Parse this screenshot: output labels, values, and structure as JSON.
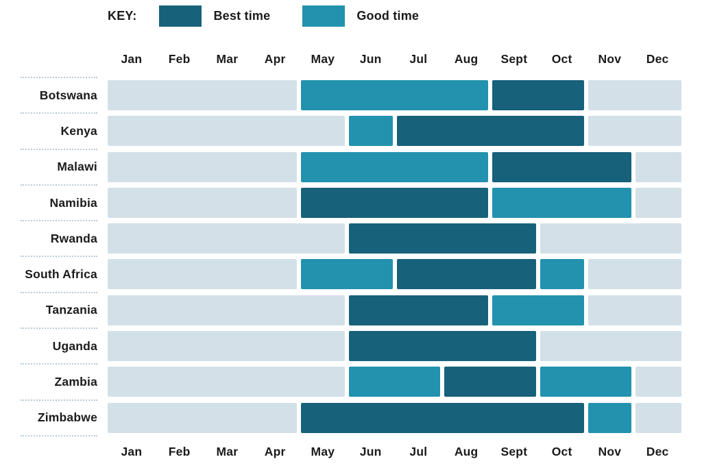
{
  "legend": {
    "title": "KEY:",
    "position": "top",
    "items": [
      {
        "label": "Best time",
        "type": "best"
      },
      {
        "label": "Good time",
        "type": "good"
      }
    ]
  },
  "colors": {
    "best": "#17617a",
    "good": "#2292ae",
    "none": "#d3e0e8",
    "dotted_divider": "#b8cbd7",
    "text": "#1b1b1b"
  },
  "chart_data": {
    "type": "heatmap",
    "title": "",
    "xlabel": "Months (shown on top and bottom axes)",
    "ylabel": "Country",
    "grid": "off",
    "legend_entries": [
      "Best time",
      "Good time"
    ],
    "months": [
      "Jan",
      "Feb",
      "Mar",
      "Apr",
      "May",
      "Jun",
      "Jul",
      "Aug",
      "Sept",
      "Oct",
      "Nov",
      "Dec"
    ],
    "rows": [
      {
        "country": "Botswana",
        "segments": [
          {
            "from": "Jan",
            "to": "Apr",
            "status": "none"
          },
          {
            "from": "May",
            "to": "Aug",
            "status": "good"
          },
          {
            "from": "Sept",
            "to": "Oct",
            "status": "best"
          },
          {
            "from": "Nov",
            "to": "Dec",
            "status": "none"
          }
        ]
      },
      {
        "country": "Kenya",
        "segments": [
          {
            "from": "Jan",
            "to": "May",
            "status": "none"
          },
          {
            "from": "Jun",
            "to": "Jun",
            "status": "good"
          },
          {
            "from": "Jul",
            "to": "Oct",
            "status": "best"
          },
          {
            "from": "Nov",
            "to": "Dec",
            "status": "none"
          }
        ]
      },
      {
        "country": "Malawi",
        "segments": [
          {
            "from": "Jan",
            "to": "Apr",
            "status": "none"
          },
          {
            "from": "May",
            "to": "Aug",
            "status": "good"
          },
          {
            "from": "Sept",
            "to": "Nov",
            "status": "best"
          },
          {
            "from": "Dec",
            "to": "Dec",
            "status": "none"
          }
        ]
      },
      {
        "country": "Namibia",
        "segments": [
          {
            "from": "Jan",
            "to": "Apr",
            "status": "none"
          },
          {
            "from": "May",
            "to": "Aug",
            "status": "best"
          },
          {
            "from": "Sept",
            "to": "Nov",
            "status": "good"
          },
          {
            "from": "Dec",
            "to": "Dec",
            "status": "none"
          }
        ]
      },
      {
        "country": "Rwanda",
        "segments": [
          {
            "from": "Jan",
            "to": "May",
            "status": "none"
          },
          {
            "from": "Jun",
            "to": "Sept",
            "status": "best"
          },
          {
            "from": "Oct",
            "to": "Dec",
            "status": "none"
          }
        ]
      },
      {
        "country": "South Africa",
        "segments": [
          {
            "from": "Jan",
            "to": "Apr",
            "status": "none"
          },
          {
            "from": "May",
            "to": "Jun",
            "status": "good"
          },
          {
            "from": "Jul",
            "to": "Sept",
            "status": "best"
          },
          {
            "from": "Oct",
            "to": "Oct",
            "status": "good"
          },
          {
            "from": "Nov",
            "to": "Dec",
            "status": "none"
          }
        ]
      },
      {
        "country": "Tanzania",
        "segments": [
          {
            "from": "Jan",
            "to": "May",
            "status": "none"
          },
          {
            "from": "Jun",
            "to": "Aug",
            "status": "best"
          },
          {
            "from": "Sept",
            "to": "Oct",
            "status": "good"
          },
          {
            "from": "Nov",
            "to": "Dec",
            "status": "none"
          }
        ]
      },
      {
        "country": "Uganda",
        "segments": [
          {
            "from": "Jan",
            "to": "May",
            "status": "none"
          },
          {
            "from": "Jun",
            "to": "Sept",
            "status": "best"
          },
          {
            "from": "Oct",
            "to": "Dec",
            "status": "none"
          }
        ]
      },
      {
        "country": "Zambia",
        "segments": [
          {
            "from": "Jan",
            "to": "May",
            "status": "none"
          },
          {
            "from": "Jun",
            "to": "Jul",
            "status": "good"
          },
          {
            "from": "Aug",
            "to": "Sept",
            "status": "best"
          },
          {
            "from": "Oct",
            "to": "Nov",
            "status": "good"
          },
          {
            "from": "Dec",
            "to": "Dec",
            "status": "none"
          }
        ]
      },
      {
        "country": "Zimbabwe",
        "segments": [
          {
            "from": "Jan",
            "to": "Apr",
            "status": "none"
          },
          {
            "from": "May",
            "to": "Oct",
            "status": "best"
          },
          {
            "from": "Nov",
            "to": "Nov",
            "status": "good"
          },
          {
            "from": "Dec",
            "to": "Dec",
            "status": "none"
          }
        ]
      }
    ]
  }
}
